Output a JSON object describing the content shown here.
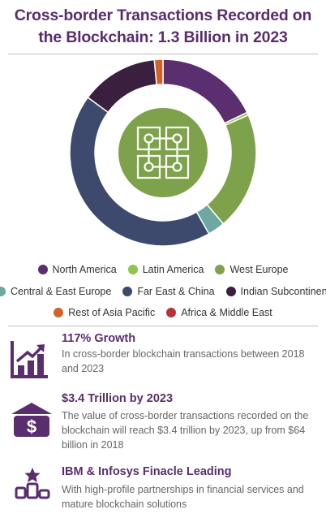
{
  "title_line1": "Cross-border Transactions Recorded on",
  "title_line2": "the Blockchain: 1.3 Billion in 2023",
  "chart_data": {
    "type": "pie",
    "style": "donut",
    "categories": [
      "North America",
      "Latin America",
      "West Europe",
      "Central & East Europe",
      "Far East & China",
      "Indian Subcontinent",
      "Rest of Asia Pacific",
      "Africa & Middle East"
    ],
    "values": [
      18.0,
      0.5,
      20.5,
      3.0,
      43.5,
      13.5,
      1.5,
      0
    ],
    "colors": [
      "#5b2e6f",
      "#8fc54a",
      "#7ea24c",
      "#6ea8a0",
      "#3d4a6e",
      "#3b1f3e",
      "#d2622a",
      "#b8323e"
    ],
    "center_icon": "blockchain-network-icon",
    "center_color": "#7ea24c"
  },
  "legend": [
    {
      "label": "North America",
      "color": "#5b2e6f"
    },
    {
      "label": "Latin America",
      "color": "#8fc54a"
    },
    {
      "label": "West Europe",
      "color": "#7ea24c"
    },
    {
      "label": "Central & East Europe",
      "color": "#6ea8a0"
    },
    {
      "label": "Far East & China",
      "color": "#3d4a6e"
    },
    {
      "label": "Indian Subcontinent",
      "color": "#3b1f3e"
    },
    {
      "label": "Rest of Asia Pacific",
      "color": "#d2622a"
    },
    {
      "label": "Africa & Middle East",
      "color": "#b8323e"
    }
  ],
  "stats": [
    {
      "icon": "growth-bar-chart-icon",
      "headline": "117% Growth",
      "text": "In cross-border blockchain transactions between 2018 and 2023"
    },
    {
      "icon": "bank-dollar-icon",
      "headline": "$3.4 Trillion by 2023",
      "text": "The value of cross-border transactions recorded on the blockchain will reach $3.4 trillion by 2023, up from $64 billion in 2018"
    },
    {
      "icon": "podium-star-icon",
      "headline": "IBM & Infosys Finacle Leading",
      "text": "With high-profile partnerships in financial services and mature blockchain solutions"
    }
  ],
  "accent_color": "#5a2d6e"
}
